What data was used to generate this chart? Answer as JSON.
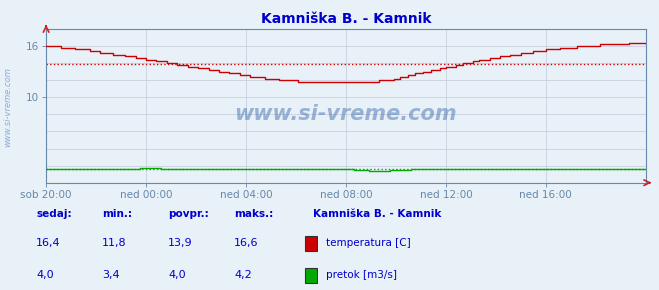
{
  "title": "Kamniška B. - Kamnik",
  "title_color": "#0000cc",
  "bg_color": "#e8f0f8",
  "plot_bg_color": "#e8f0f8",
  "grid_color": "#c8d0e0",
  "xlim": [
    0,
    288
  ],
  "ylim": [
    0,
    18
  ],
  "yticks": [
    10,
    16
  ],
  "ytick_labels": [
    "10",
    "16"
  ],
  "xlabel_ticks": [
    0,
    48,
    96,
    144,
    192,
    240
  ],
  "xlabel_labels": [
    "sob 20:00",
    "ned 00:00",
    "ned 04:00",
    "ned 08:00",
    "ned 12:00",
    "ned 16:00"
  ],
  "temp_color": "#cc0000",
  "flow_color": "#00aa00",
  "avg_temp": 13.9,
  "avg_flow_y": 1.6,
  "watermark": "www.si-vreme.com",
  "watermark_color": "#3366aa",
  "headers": [
    "sedaj:",
    "min.:",
    "povpr.:",
    "maks.:"
  ],
  "temp_row": [
    "16,4",
    "11,8",
    "13,9",
    "16,6"
  ],
  "flow_row": [
    "4,0",
    "3,4",
    "4,0",
    "4,2"
  ],
  "legend_title": "Kamniška B. - Kamnik",
  "legend_items": [
    "temperatura [C]",
    "pretok [m3/s]"
  ],
  "legend_colors": [
    "#cc0000",
    "#00aa00"
  ],
  "axis_color": "#6688aa",
  "tick_color": "#6688aa",
  "label_color": "#0000cc",
  "t_keys": [
    0,
    20,
    40,
    60,
    80,
    100,
    120,
    140,
    155,
    165,
    175,
    190,
    210,
    230,
    250,
    270,
    288
  ],
  "v_keys": [
    16.1,
    15.5,
    14.8,
    14.0,
    13.2,
    12.4,
    11.9,
    11.8,
    11.8,
    12.0,
    12.6,
    13.4,
    14.4,
    15.2,
    15.8,
    16.2,
    16.4
  ]
}
